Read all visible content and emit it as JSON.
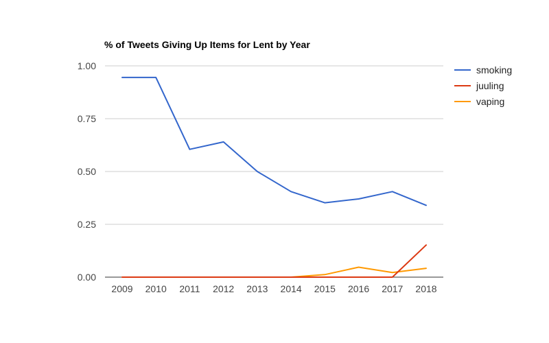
{
  "chart_data": {
    "type": "line",
    "title": "% of Tweets Giving Up Items for Lent by Year",
    "xlabel": "",
    "ylabel": "",
    "x": [
      "2009",
      "2010",
      "2011",
      "2012",
      "2013",
      "2014",
      "2015",
      "2016",
      "2017",
      "2018"
    ],
    "ylim": [
      0,
      1
    ],
    "yticks": [
      "0.00",
      "0.25",
      "0.50",
      "0.75",
      "1.00"
    ],
    "grid": true,
    "legend_position": "right",
    "series": [
      {
        "name": "smoking",
        "color": "#3366cc",
        "values": [
          0.945,
          0.945,
          0.605,
          0.64,
          0.5,
          0.405,
          0.352,
          0.37,
          0.405,
          0.34
        ]
      },
      {
        "name": "juuling",
        "color": "#dc3912",
        "values": [
          0,
          0,
          0,
          0,
          0,
          0,
          0,
          0,
          0,
          0.152
        ]
      },
      {
        "name": "vaping",
        "color": "#ff9900",
        "values": [
          0,
          0,
          0,
          0,
          0,
          0,
          0.012,
          0.047,
          0.022,
          0.042
        ]
      }
    ]
  }
}
